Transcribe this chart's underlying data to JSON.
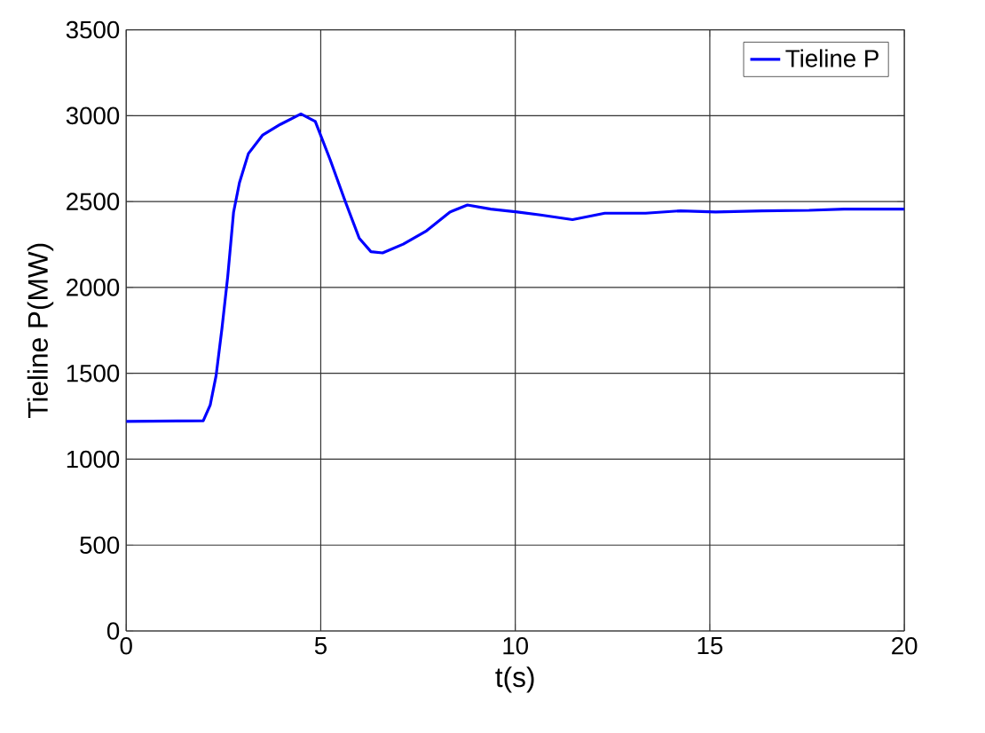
{
  "chart_data": {
    "type": "line",
    "xlabel": "t(s)",
    "ylabel": "Tieline P(MW)",
    "xlim": [
      0,
      20
    ],
    "ylim": [
      0,
      3500
    ],
    "xticks": [
      0,
      5,
      10,
      15,
      20
    ],
    "yticks": [
      0,
      500,
      1000,
      1500,
      2000,
      2500,
      3000,
      3500
    ],
    "grid": true,
    "legend": "top right",
    "series": [
      {
        "name": "Tieline P",
        "color": "#0000ff",
        "x": [
          0,
          1.98,
          2.16,
          2.31,
          2.46,
          2.61,
          2.76,
          2.91,
          3.14,
          3.51,
          3.96,
          4.49,
          4.86,
          5.24,
          5.62,
          5.99,
          6.29,
          6.59,
          7.12,
          7.72,
          8.32,
          8.77,
          9.37,
          10.05,
          10.65,
          11.47,
          12.3,
          13.35,
          14.25,
          15.15,
          16.35,
          17.55,
          18.45,
          20
        ],
        "values": [
          1220,
          1224,
          1316,
          1486,
          1759,
          2065,
          2439,
          2609,
          2779,
          2888,
          2949,
          3010,
          2966,
          2745,
          2507,
          2286,
          2208,
          2201,
          2252,
          2330,
          2439,
          2480,
          2456,
          2439,
          2422,
          2395,
          2432,
          2432,
          2446,
          2439,
          2446,
          2449,
          2456,
          2456
        ]
      }
    ]
  }
}
